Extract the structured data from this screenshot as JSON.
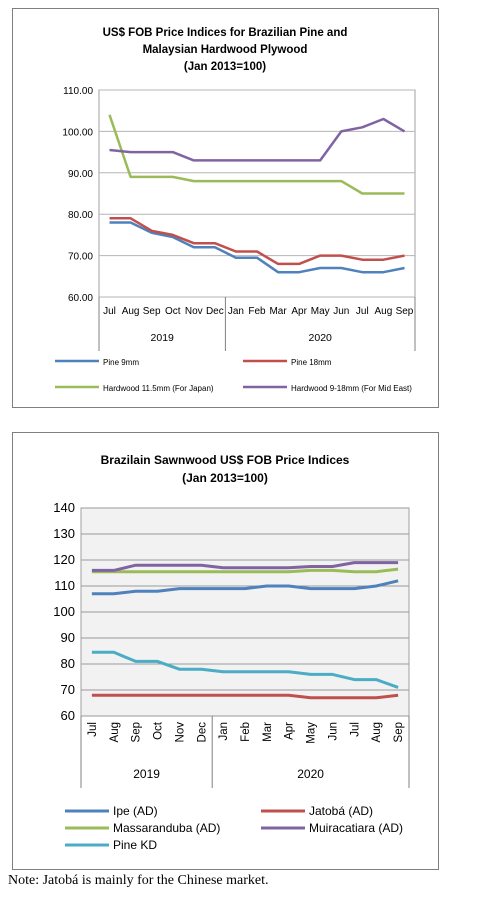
{
  "chart_data": [
    {
      "type": "line",
      "title": [
        "US$ FOB Price Indices for Brazilian Pine and",
        "Malaysian Hardwood Plywood",
        "(Jan 2013=100)"
      ],
      "categories": [
        "Jul",
        "Aug",
        "Sep",
        "Oct",
        "Nov",
        "Dec",
        "Jan",
        "Feb",
        "Mar",
        "Apr",
        "May",
        "Jun",
        "Jul",
        "Aug",
        "Sep"
      ],
      "year_groups": [
        {
          "label": "2019",
          "span": 6
        },
        {
          "label": "2020",
          "span": 9
        }
      ],
      "ylim": [
        60,
        110
      ],
      "yticks": [
        "60.00",
        "70.00",
        "80.00",
        "90.00",
        "100.00",
        "110.00"
      ],
      "grid": true,
      "legend_position": "bottom",
      "series": [
        {
          "name": "Pine 9mm",
          "color": "#4f81bd",
          "values": [
            78,
            78,
            75.5,
            74.5,
            72,
            72,
            69.5,
            69.5,
            66,
            66,
            67,
            67,
            66,
            66,
            67
          ]
        },
        {
          "name": "Pine 18mm",
          "color": "#c0504d",
          "values": [
            79,
            79,
            76,
            75,
            73,
            73,
            71,
            71,
            68,
            68,
            70,
            70,
            69,
            69,
            70
          ]
        },
        {
          "name": "Hardwood 11.5mm (For Japan)",
          "color": "#9bbb59",
          "values": [
            104,
            89,
            89,
            89,
            88,
            88,
            88,
            88,
            88,
            88,
            88,
            88,
            85,
            85,
            85
          ]
        },
        {
          "name": "Hardwood 9-18mm (For Mid East)",
          "color": "#8064a2",
          "values": [
            95.5,
            95,
            95,
            95,
            93,
            93,
            93,
            93,
            93,
            93,
            93,
            100,
            101,
            103,
            100
          ]
        }
      ]
    },
    {
      "type": "line",
      "title": [
        "Brazilain Sawnwood US$ FOB Price Indices",
        "(Jan 2013=100)"
      ],
      "categories": [
        "Jul",
        "Aug",
        "Sep",
        "Oct",
        "Nov",
        "Dec",
        "Jan",
        "Feb",
        "Mar",
        "Apr",
        "May",
        "Jun",
        "Jul",
        "Aug",
        "Sep"
      ],
      "year_groups": [
        {
          "label": "2019",
          "span": 6
        },
        {
          "label": "2020",
          "span": 9
        }
      ],
      "ylim": [
        60,
        140
      ],
      "yticks": [
        "60",
        "70",
        "80",
        "90",
        "100",
        "110",
        "120",
        "130",
        "140"
      ],
      "grid": true,
      "legend_position": "bottom",
      "series": [
        {
          "name": "Ipe (AD)",
          "color": "#4f81bd",
          "values": [
            107,
            107,
            108,
            108,
            109,
            109,
            109,
            109,
            110,
            110,
            109,
            109,
            109,
            110,
            112
          ]
        },
        {
          "name": "Jatobá (AD)",
          "color": "#c0504d",
          "values": [
            68,
            68,
            68,
            68,
            68,
            68,
            68,
            68,
            68,
            68,
            67,
            67,
            67,
            67,
            68
          ]
        },
        {
          "name": "Massaranduba (AD)",
          "color": "#9bbb59",
          "values": [
            115.5,
            115.5,
            115.5,
            115.5,
            115.5,
            115.5,
            115.5,
            115.5,
            115.5,
            115.5,
            116,
            116,
            115.5,
            115.5,
            116.5
          ]
        },
        {
          "name": "Muiracatiara (AD)",
          "color": "#8064a2",
          "values": [
            116,
            116,
            118,
            118,
            118,
            118,
            117,
            117,
            117,
            117,
            117.5,
            117.5,
            119,
            119,
            119
          ]
        },
        {
          "name": "Pine KD",
          "color": "#4bacc6",
          "values": [
            84.5,
            84.5,
            81,
            81,
            78,
            78,
            77,
            77,
            77,
            77,
            76,
            76,
            74,
            74,
            71
          ]
        }
      ]
    }
  ],
  "note": "Note: Jatobá is mainly for the Chinese market."
}
